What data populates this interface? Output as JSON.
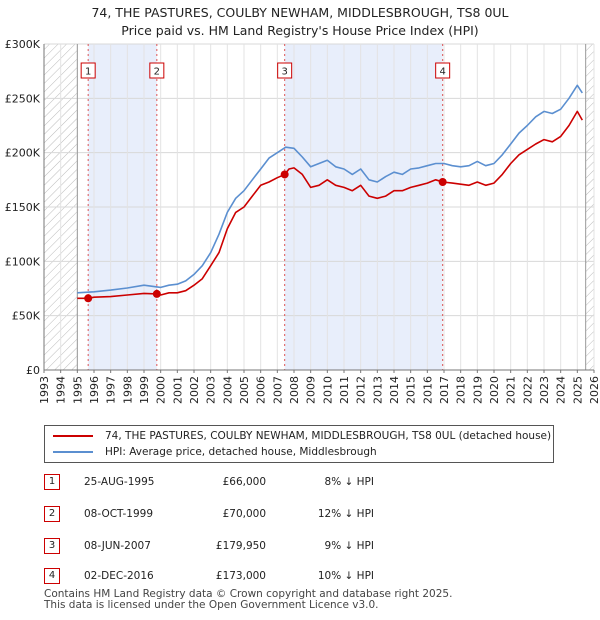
{
  "title_line1": "74, THE PASTURES, COULBY NEWHAM, MIDDLESBROUGH, TS8 0UL",
  "title_line2": "Price paid vs. HM Land Registry's House Price Index (HPI)",
  "colors": {
    "property": "#cc0000",
    "hpi": "#5b8fd0",
    "shade": "#e8eefb",
    "marker_border": "#cc0000"
  },
  "chart_data": {
    "type": "line",
    "xlim": [
      1993,
      2026
    ],
    "ylim": [
      0,
      300000
    ],
    "x_ticks": [
      1993,
      1994,
      1995,
      1996,
      1997,
      1998,
      1999,
      2000,
      2001,
      2002,
      2003,
      2004,
      2005,
      2006,
      2007,
      2008,
      2009,
      2010,
      2011,
      2012,
      2013,
      2014,
      2015,
      2016,
      2017,
      2018,
      2019,
      2020,
      2021,
      2022,
      2023,
      2024,
      2025,
      2026
    ],
    "y_ticks": [
      {
        "value": 0,
        "label": "£0"
      },
      {
        "value": 50000,
        "label": "£50K"
      },
      {
        "value": 100000,
        "label": "£100K"
      },
      {
        "value": 150000,
        "label": "£150K"
      },
      {
        "value": 200000,
        "label": "£200K"
      },
      {
        "value": 250000,
        "label": "£250K"
      },
      {
        "value": 300000,
        "label": "£300K"
      }
    ],
    "hatched_before": 1995.0,
    "hatched_after": 2025.5,
    "shaded_ranges": [
      [
        1995.65,
        1999.77
      ],
      [
        2007.44,
        2016.92
      ]
    ],
    "series": [
      {
        "name": "74, THE PASTURES, COULBY NEWHAM, MIDDLESBROUGH, TS8 0UL (detached house)",
        "color": "#cc0000",
        "points": [
          [
            1995.0,
            66000
          ],
          [
            1995.65,
            66000
          ],
          [
            1996.0,
            67000
          ],
          [
            1997.0,
            67500
          ],
          [
            1998.0,
            69000
          ],
          [
            1999.0,
            70500
          ],
          [
            1999.77,
            70000
          ],
          [
            2000.0,
            69000
          ],
          [
            2000.5,
            71000
          ],
          [
            2001.0,
            71000
          ],
          [
            2001.5,
            73000
          ],
          [
            2002.0,
            78000
          ],
          [
            2002.5,
            84000
          ],
          [
            2003.0,
            96000
          ],
          [
            2003.5,
            108000
          ],
          [
            2004.0,
            130000
          ],
          [
            2004.5,
            145000
          ],
          [
            2005.0,
            150000
          ],
          [
            2005.5,
            160000
          ],
          [
            2006.0,
            170000
          ],
          [
            2006.5,
            173000
          ],
          [
            2007.0,
            177000
          ],
          [
            2007.44,
            179950
          ],
          [
            2007.7,
            185000
          ],
          [
            2008.0,
            186000
          ],
          [
            2008.5,
            180000
          ],
          [
            2009.0,
            168000
          ],
          [
            2009.5,
            170000
          ],
          [
            2010.0,
            175000
          ],
          [
            2010.5,
            170000
          ],
          [
            2011.0,
            168000
          ],
          [
            2011.5,
            165000
          ],
          [
            2012.0,
            170000
          ],
          [
            2012.5,
            160000
          ],
          [
            2013.0,
            158000
          ],
          [
            2013.5,
            160000
          ],
          [
            2014.0,
            165000
          ],
          [
            2014.5,
            165000
          ],
          [
            2015.0,
            168000
          ],
          [
            2015.5,
            170000
          ],
          [
            2016.0,
            172000
          ],
          [
            2016.5,
            175000
          ],
          [
            2016.92,
            173000
          ],
          [
            2017.5,
            172000
          ],
          [
            2018.0,
            171000
          ],
          [
            2018.5,
            170000
          ],
          [
            2019.0,
            173000
          ],
          [
            2019.5,
            170000
          ],
          [
            2020.0,
            172000
          ],
          [
            2020.5,
            180000
          ],
          [
            2021.0,
            190000
          ],
          [
            2021.5,
            198000
          ],
          [
            2022.0,
            203000
          ],
          [
            2022.5,
            208000
          ],
          [
            2023.0,
            212000
          ],
          [
            2023.5,
            210000
          ],
          [
            2024.0,
            215000
          ],
          [
            2024.5,
            225000
          ],
          [
            2025.0,
            238000
          ],
          [
            2025.3,
            230000
          ]
        ]
      },
      {
        "name": "HPI: Average price, detached house, Middlesbrough",
        "color": "#5b8fd0",
        "points": [
          [
            1995.0,
            71000
          ],
          [
            1996.0,
            72000
          ],
          [
            1997.0,
            73500
          ],
          [
            1998.0,
            75500
          ],
          [
            1999.0,
            78000
          ],
          [
            2000.0,
            76000
          ],
          [
            2000.5,
            78000
          ],
          [
            2001.0,
            79000
          ],
          [
            2001.5,
            82000
          ],
          [
            2002.0,
            88000
          ],
          [
            2002.5,
            96000
          ],
          [
            2003.0,
            108000
          ],
          [
            2003.5,
            125000
          ],
          [
            2004.0,
            145000
          ],
          [
            2004.5,
            158000
          ],
          [
            2005.0,
            165000
          ],
          [
            2005.5,
            175000
          ],
          [
            2006.0,
            185000
          ],
          [
            2006.5,
            195000
          ],
          [
            2007.0,
            200000
          ],
          [
            2007.5,
            205000
          ],
          [
            2008.0,
            204000
          ],
          [
            2008.5,
            196000
          ],
          [
            2009.0,
            187000
          ],
          [
            2009.5,
            190000
          ],
          [
            2010.0,
            193000
          ],
          [
            2010.5,
            187000
          ],
          [
            2011.0,
            185000
          ],
          [
            2011.5,
            180000
          ],
          [
            2012.0,
            185000
          ],
          [
            2012.5,
            175000
          ],
          [
            2013.0,
            173000
          ],
          [
            2013.5,
            178000
          ],
          [
            2014.0,
            182000
          ],
          [
            2014.5,
            180000
          ],
          [
            2015.0,
            185000
          ],
          [
            2015.5,
            186000
          ],
          [
            2016.0,
            188000
          ],
          [
            2016.5,
            190000
          ],
          [
            2017.0,
            190000
          ],
          [
            2017.5,
            188000
          ],
          [
            2018.0,
            187000
          ],
          [
            2018.5,
            188000
          ],
          [
            2019.0,
            192000
          ],
          [
            2019.5,
            188000
          ],
          [
            2020.0,
            190000
          ],
          [
            2020.5,
            198000
          ],
          [
            2021.0,
            208000
          ],
          [
            2021.5,
            218000
          ],
          [
            2022.0,
            225000
          ],
          [
            2022.5,
            233000
          ],
          [
            2023.0,
            238000
          ],
          [
            2023.5,
            236000
          ],
          [
            2024.0,
            240000
          ],
          [
            2024.5,
            250000
          ],
          [
            2025.0,
            262000
          ],
          [
            2025.3,
            255000
          ]
        ]
      }
    ],
    "sale_markers": [
      {
        "label": "1",
        "x": 1995.65,
        "y": 66000
      },
      {
        "label": "2",
        "x": 1999.77,
        "y": 70000
      },
      {
        "label": "3",
        "x": 2007.44,
        "y": 179950
      },
      {
        "label": "4",
        "x": 2016.92,
        "y": 173000
      }
    ]
  },
  "legend": {
    "property_label": "74, THE PASTURES, COULBY NEWHAM, MIDDLESBROUGH, TS8 0UL (detached house)",
    "hpi_label": "HPI: Average price, detached house, Middlesbrough"
  },
  "sales": [
    {
      "num": "1",
      "date": "25-AUG-1995",
      "price": "£66,000",
      "hpi": "8% ↓ HPI"
    },
    {
      "num": "2",
      "date": "08-OCT-1999",
      "price": "£70,000",
      "hpi": "12% ↓ HPI"
    },
    {
      "num": "3",
      "date": "08-JUN-2007",
      "price": "£179,950",
      "hpi": "9% ↓ HPI"
    },
    {
      "num": "4",
      "date": "02-DEC-2016",
      "price": "£173,000",
      "hpi": "10% ↓ HPI"
    }
  ],
  "footer_line1": "Contains HM Land Registry data © Crown copyright and database right 2025.",
  "footer_line2": "This data is licensed under the Open Government Licence v3.0."
}
